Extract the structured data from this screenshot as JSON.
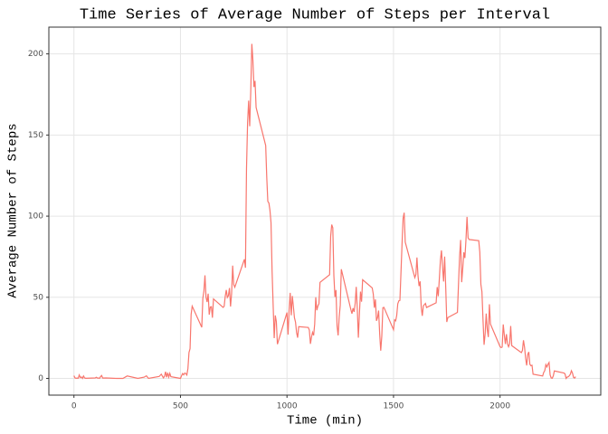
{
  "chart_data": {
    "type": "line",
    "title": "Time Series of Average Number of Steps per Interval",
    "x_label": "Time (min)",
    "y_label": "Average Number of Steps",
    "x": [
      0,
      5,
      10,
      15,
      20,
      25,
      30,
      35,
      40,
      45,
      50,
      55,
      100,
      105,
      110,
      115,
      120,
      125,
      130,
      135,
      150,
      200,
      230,
      250,
      300,
      330,
      340,
      350,
      400,
      410,
      420,
      425,
      430,
      435,
      440,
      445,
      450,
      455,
      500,
      505,
      510,
      515,
      520,
      525,
      530,
      535,
      540,
      545,
      550,
      555,
      600,
      605,
      610,
      615,
      620,
      625,
      630,
      635,
      640,
      645,
      650,
      655,
      700,
      705,
      710,
      715,
      720,
      725,
      730,
      735,
      740,
      745,
      750,
      755,
      800,
      805,
      810,
      815,
      820,
      825,
      830,
      835,
      840,
      845,
      850,
      855,
      900,
      905,
      910,
      915,
      920,
      925,
      930,
      935,
      940,
      945,
      950,
      955,
      1000,
      1005,
      1010,
      1015,
      1020,
      1025,
      1030,
      1035,
      1040,
      1045,
      1050,
      1055,
      1100,
      1105,
      1110,
      1115,
      1120,
      1125,
      1130,
      1135,
      1140,
      1145,
      1150,
      1155,
      1200,
      1205,
      1210,
      1215,
      1220,
      1225,
      1230,
      1235,
      1240,
      1245,
      1250,
      1255,
      1300,
      1305,
      1310,
      1315,
      1320,
      1325,
      1330,
      1335,
      1340,
      1345,
      1350,
      1355,
      1400,
      1405,
      1410,
      1415,
      1420,
      1425,
      1430,
      1435,
      1440,
      1445,
      1450,
      1455,
      1500,
      1505,
      1510,
      1515,
      1520,
      1525,
      1530,
      1535,
      1540,
      1545,
      1550,
      1555,
      1600,
      1605,
      1610,
      1615,
      1620,
      1625,
      1630,
      1635,
      1640,
      1645,
      1650,
      1655,
      1700,
      1705,
      1710,
      1715,
      1720,
      1725,
      1730,
      1735,
      1740,
      1745,
      1750,
      1755,
      1800,
      1805,
      1810,
      1815,
      1820,
      1825,
      1830,
      1835,
      1840,
      1845,
      1850,
      1855,
      1900,
      1905,
      1910,
      1915,
      1920,
      1925,
      1930,
      1935,
      1940,
      1945,
      1950,
      1955,
      2000,
      2005,
      2010,
      2015,
      2020,
      2025,
      2030,
      2035,
      2040,
      2045,
      2050,
      2055,
      2100,
      2105,
      2110,
      2115,
      2120,
      2125,
      2130,
      2135,
      2140,
      2145,
      2150,
      2155,
      2200,
      2205,
      2210,
      2215,
      2220,
      2225,
      2230,
      2235,
      2240,
      2245,
      2250,
      2255,
      2300,
      2305,
      2310,
      2315,
      2320,
      2325,
      2330,
      2335,
      2340,
      2345,
      2350,
      2355
    ],
    "series": [
      {
        "color": "#f8766d",
        "values": [
          1.7,
          0.3,
          0.1,
          0.2,
          0.1,
          2.1,
          0.5,
          0.9,
          0,
          1.5,
          0.3,
          0.1,
          0.3,
          0.7,
          0.2,
          0.3,
          0,
          1.1,
          1.8,
          0.2,
          0.3,
          0,
          0,
          1.5,
          0,
          0.8,
          1.6,
          0,
          1.2,
          2.6,
          0.3,
          1.3,
          4.1,
          0.7,
          3.5,
          0.8,
          3.1,
          1.1,
          0,
          1.6,
          3.0,
          2.2,
          3.3,
          3.0,
          2.1,
          6.1,
          16.0,
          18.3,
          39.5,
          44.5,
          31.5,
          49.3,
          53.8,
          63.5,
          50.0,
          47.1,
          52.2,
          39.3,
          44.0,
          44.2,
          37.4,
          49.0,
          43.8,
          44.4,
          50.5,
          54.5,
          49.9,
          51.0,
          55.7,
          44.3,
          52.3,
          69.5,
          57.8,
          56.2,
          73.4,
          68.2,
          129.4,
          157.5,
          171.2,
          155.4,
          177.3,
          206.2,
          195.9,
          179.6,
          183.4,
          167.0,
          143.5,
          124.0,
          109.1,
          108.1,
          103.7,
          96.0,
          66.2,
          45.2,
          24.8,
          38.8,
          35.0,
          21.1,
          40.6,
          27.0,
          42.4,
          52.7,
          38.9,
          50.8,
          44.3,
          37.4,
          34.7,
          28.3,
          25.1,
          31.9,
          31.4,
          29.7,
          21.3,
          25.5,
          28.4,
          26.5,
          33.4,
          50.0,
          42.0,
          44.6,
          46.0,
          59.2,
          63.9,
          87.7,
          94.8,
          92.8,
          63.4,
          50.2,
          54.5,
          32.4,
          26.5,
          37.7,
          45.1,
          67.3,
          42.3,
          39.9,
          43.3,
          41.0,
          46.2,
          56.4,
          42.8,
          25.1,
          40.0,
          53.5,
          47.3,
          60.8,
          55.8,
          52.0,
          43.6,
          48.7,
          35.5,
          37.5,
          41.8,
          27.5,
          17.1,
          26.1,
          43.6,
          43.8,
          30.0,
          36.1,
          35.5,
          38.8,
          46.0,
          47.8,
          48.1,
          65.3,
          82.9,
          98.7,
          102.1,
          84.0,
          62.1,
          64.1,
          74.5,
          63.2,
          56.9,
          59.8,
          43.9,
          38.6,
          44.7,
          45.5,
          46.2,
          43.7,
          46.6,
          56.3,
          50.7,
          61.2,
          72.7,
          78.9,
          68.9,
          59.7,
          75.1,
          56.5,
          34.8,
          37.5,
          40.7,
          58.0,
          74.7,
          85.3,
          59.3,
          67.8,
          77.7,
          74.2,
          85.3,
          99.5,
          86.6,
          85.6,
          84.9,
          77.8,
          58.0,
          53.4,
          36.3,
          20.7,
          27.4,
          40.0,
          30.2,
          25.5,
          45.7,
          33.5,
          19.6,
          19.0,
          19.3,
          33.3,
          26.8,
          21.2,
          27.3,
          21.3,
          19.5,
          21.3,
          32.3,
          20.2,
          15.9,
          17.2,
          23.5,
          19.2,
          12.5,
          8.0,
          14.7,
          16.3,
          8.7,
          7.8,
          8.1,
          2.6,
          1.5,
          3.7,
          4.8,
          8.5,
          7.1,
          8.7,
          9.8,
          2.2,
          0.3,
          0.1,
          1.6,
          4.6,
          3.3,
          2.8,
          0,
          0.8,
          1.0,
          1.6,
          2.6,
          4.7,
          3.3,
          0.6,
          0.2,
          1.1
        ]
      }
    ],
    "xlim": [
      -117.75,
      2472.75
    ],
    "ylim": [
      -10.3,
      216.5
    ],
    "xticks": [
      0,
      500,
      1000,
      1500,
      2000
    ],
    "yticks": [
      0,
      50,
      100,
      150,
      200
    ],
    "grid": true
  }
}
